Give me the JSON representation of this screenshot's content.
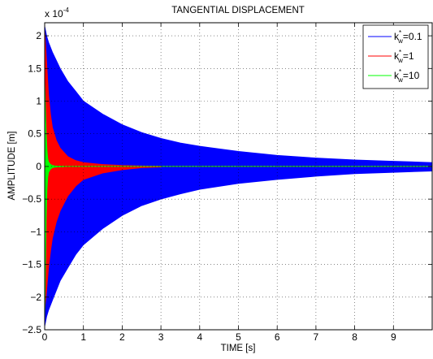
{
  "chart_data": {
    "type": "area",
    "title": "TANGENTIAL DISPLACEMENT",
    "xlabel": "TIME [s]",
    "ylabel": "AMPLITUDE [m]",
    "y_multiplier_label": {
      "base": "x 10",
      "exponent": "-4"
    },
    "xlim": [
      0,
      10
    ],
    "ylim": [
      -2.5,
      2.2
    ],
    "x_ticks": [
      0,
      1,
      2,
      3,
      4,
      5,
      6,
      7,
      8,
      9
    ],
    "y_ticks": [
      -2.5,
      -2,
      -1.5,
      -1,
      -0.5,
      0,
      0.5,
      1,
      1.5,
      2
    ],
    "x_tick_labels": [
      "0",
      "1",
      "2",
      "3",
      "4",
      "5",
      "6",
      "7",
      "8",
      "9"
    ],
    "y_tick_labels": [
      "−2.5",
      "−2",
      "−1.5",
      "−1",
      "−0.5",
      "0",
      "0.5",
      "1",
      "1.5",
      "2"
    ],
    "grid": true,
    "legend_position": "top-right",
    "series": [
      {
        "name": "k_w^*=0.1",
        "label_parts": {
          "k": "k",
          "sup": "*",
          "sub": "w",
          "rest": "=0.1"
        },
        "color": "#0000ff",
        "envelope_time": [
          0,
          0.05,
          0.1,
          0.2,
          0.4,
          0.6,
          0.8,
          1,
          1.5,
          2,
          2.5,
          3,
          3.5,
          4,
          5,
          6,
          7,
          8,
          9,
          10
        ],
        "envelope_upper": [
          2.15,
          2.0,
          1.9,
          1.75,
          1.5,
          1.3,
          1.15,
          1.0,
          0.8,
          0.64,
          0.52,
          0.43,
          0.36,
          0.31,
          0.23,
          0.17,
          0.13,
          0.1,
          0.08,
          0.06
        ],
        "envelope_lower": [
          -2.45,
          -2.3,
          -2.2,
          -2.05,
          -1.75,
          -1.55,
          -1.35,
          -1.2,
          -0.95,
          -0.75,
          -0.6,
          -0.5,
          -0.42,
          -0.35,
          -0.26,
          -0.2,
          -0.15,
          -0.11,
          -0.09,
          -0.07
        ]
      },
      {
        "name": "k_w^*=1",
        "label_parts": {
          "k": "k",
          "sup": "*",
          "sub": "w",
          "rest": "=1"
        },
        "color": "#ff0000",
        "envelope_time": [
          0,
          0.05,
          0.1,
          0.15,
          0.2,
          0.3,
          0.4,
          0.6,
          0.8,
          1,
          1.5,
          2,
          2.5,
          3
        ],
        "envelope_upper": [
          2.1,
          1.6,
          1.1,
          0.8,
          0.6,
          0.4,
          0.28,
          0.15,
          0.09,
          0.06,
          0.03,
          0.015,
          0.008,
          0.004
        ],
        "envelope_lower": [
          -2.2,
          -1.9,
          -1.55,
          -1.3,
          -1.1,
          -0.85,
          -0.68,
          -0.45,
          -0.3,
          -0.2,
          -0.1,
          -0.05,
          -0.02,
          -0.008
        ]
      },
      {
        "name": "k_w^*=10",
        "label_parts": {
          "k": "k",
          "sup": "*",
          "sub": "w",
          "rest": "=10"
        },
        "color": "#00ff00",
        "envelope_time": [
          0,
          0.02,
          0.04,
          0.06,
          0.08,
          0.1,
          0.15,
          0.2,
          0.3,
          0.5
        ],
        "envelope_upper": [
          1.35,
          0.9,
          0.5,
          0.25,
          0.12,
          0.07,
          0.03,
          0.015,
          0.006,
          0.002
        ],
        "envelope_lower": [
          -2.45,
          -1.6,
          -0.8,
          -0.35,
          -0.17,
          -0.09,
          -0.04,
          -0.02,
          -0.008,
          -0.003
        ]
      }
    ]
  }
}
